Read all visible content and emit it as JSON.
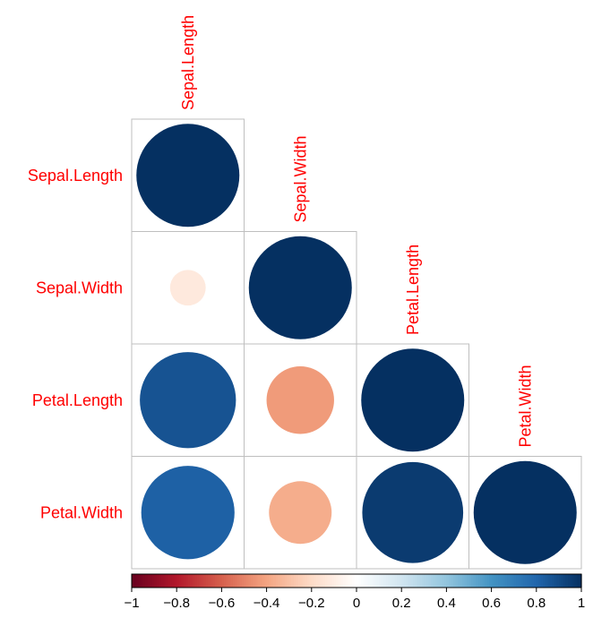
{
  "chart_data": {
    "type": "heatmap",
    "variables": [
      "Sepal.Length",
      "Sepal.Width",
      "Petal.Length",
      "Petal.Width"
    ],
    "matrix": [
      [
        1.0,
        -0.12,
        0.87,
        0.82
      ],
      [
        -0.12,
        1.0,
        -0.43,
        -0.37
      ],
      [
        0.87,
        -0.43,
        1.0,
        0.96
      ],
      [
        0.82,
        -0.37,
        0.96,
        1.0
      ]
    ],
    "display": "lower-triangle",
    "glyph": "circle",
    "label_color": "#ff0000",
    "grid_color": "#bfbfbf",
    "colorbar": {
      "min": -1,
      "max": 1,
      "ticks": [
        "−1",
        "−0.8",
        "−0.6",
        "−0.4",
        "−0.2",
        "0",
        "0.2",
        "0.4",
        "0.6",
        "0.8",
        "1"
      ],
      "tick_values": [
        -1,
        -0.8,
        -0.6,
        -0.4,
        -0.2,
        0,
        0.2,
        0.4,
        0.6,
        0.8,
        1
      ],
      "palette": [
        "#67001f",
        "#b2182b",
        "#d6604d",
        "#f4a582",
        "#fddbc7",
        "#ffffff",
        "#d1e5f0",
        "#92c5de",
        "#4393c3",
        "#2166ac",
        "#053061"
      ]
    }
  }
}
